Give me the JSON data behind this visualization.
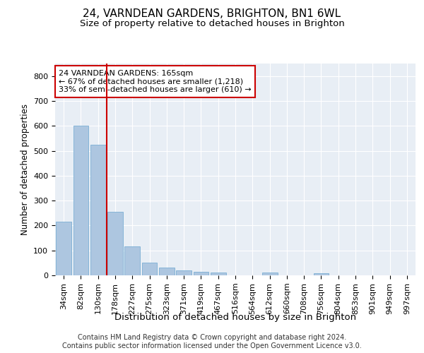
{
  "title1": "24, VARNDEAN GARDENS, BRIGHTON, BN1 6WL",
  "title2": "Size of property relative to detached houses in Brighton",
  "xlabel": "Distribution of detached houses by size in Brighton",
  "ylabel": "Number of detached properties",
  "bar_labels": [
    "34sqm",
    "82sqm",
    "130sqm",
    "178sqm",
    "227sqm",
    "275sqm",
    "323sqm",
    "371sqm",
    "419sqm",
    "467sqm",
    "516sqm",
    "564sqm",
    "612sqm",
    "660sqm",
    "708sqm",
    "756sqm",
    "804sqm",
    "853sqm",
    "901sqm",
    "949sqm",
    "997sqm"
  ],
  "bar_values": [
    215,
    600,
    525,
    255,
    115,
    52,
    30,
    20,
    15,
    10,
    0,
    0,
    10,
    0,
    0,
    8,
    0,
    0,
    0,
    0,
    0
  ],
  "bar_color": "#adc6e0",
  "bar_edge_color": "#7aafd4",
  "vline_x": 2.5,
  "vline_color": "#cc0000",
  "annotation_text": "24 VARNDEAN GARDENS: 165sqm\n← 67% of detached houses are smaller (1,218)\n33% of semi-detached houses are larger (610) →",
  "annotation_box_color": "#ffffff",
  "annotation_box_edge": "#cc0000",
  "ylim": [
    0,
    850
  ],
  "yticks": [
    0,
    100,
    200,
    300,
    400,
    500,
    600,
    700,
    800
  ],
  "background_color": "#e8eef5",
  "grid_color": "#ffffff",
  "fig_background": "#ffffff",
  "footer_text": "Contains HM Land Registry data © Crown copyright and database right 2024.\nContains public sector information licensed under the Open Government Licence v3.0.",
  "title1_fontsize": 11,
  "title2_fontsize": 9.5,
  "xlabel_fontsize": 9.5,
  "ylabel_fontsize": 8.5,
  "tick_fontsize": 8,
  "annot_fontsize": 8,
  "footer_fontsize": 7
}
